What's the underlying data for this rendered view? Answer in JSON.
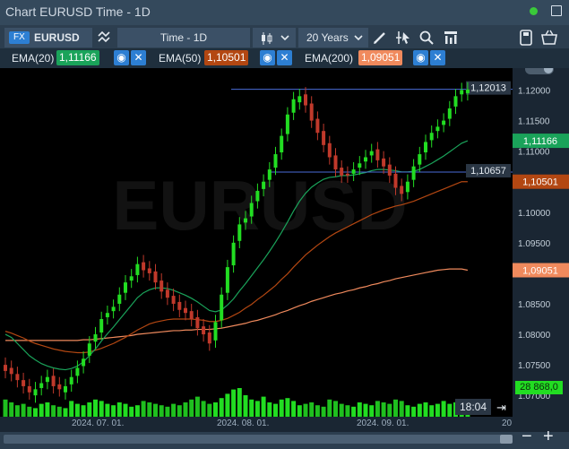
{
  "window": {
    "title": "Chart EURUSD Time - 1D"
  },
  "toolbar": {
    "symbol_badge": "FX",
    "symbol": "EURUSD",
    "timeframe": "Time - 1D",
    "range": "20 Years"
  },
  "indicators": [
    {
      "label": "EMA(20)",
      "value": "1,11166",
      "color": "#1aa35a"
    },
    {
      "label": "EMA(50)",
      "value": "1,10501",
      "color": "#b34712"
    },
    {
      "label": "EMA(200)",
      "value": "1,09051",
      "color": "#f08a5d"
    }
  ],
  "watermark": "EURUSD",
  "price_lines": [
    {
      "label": "1,12013",
      "price": 1.12013
    },
    {
      "label": "1,10657",
      "price": 1.10657
    }
  ],
  "axis": {
    "y_ticks": [
      "1.12000",
      "1.11500",
      "1.11000",
      "1.10500",
      "1.10000",
      "1.09500",
      "1.09000",
      "1.08500",
      "1.08000",
      "1.07500",
      "1.07000"
    ],
    "y_tick_values": [
      1.12,
      1.115,
      1.11,
      1.105,
      1.1,
      1.095,
      1.09,
      1.085,
      1.08,
      1.075,
      1.07
    ],
    "x_ticks": [
      "2024. 07. 01.",
      "2024. 08. 01.",
      "2024. 09. 01."
    ],
    "x_tail": "20",
    "time_readout": "18:04",
    "volume_label": "28 868,0"
  },
  "colors": {
    "up": "#22dd22",
    "down": "#c0392b",
    "ema20": "#1aa35a",
    "ema50": "#b34712",
    "ema200": "#f08a5d",
    "price_line": "#4a6bd8"
  },
  "chart_data": {
    "type": "candlestick",
    "ylim": [
      1.0665,
      1.1236
    ],
    "x_categories": [
      "2024-06-10",
      "2024-06-11",
      "2024-06-12",
      "2024-06-13",
      "2024-06-14",
      "2024-06-17",
      "2024-06-18",
      "2024-06-19",
      "2024-06-20",
      "2024-06-21",
      "2024-06-24",
      "2024-06-25",
      "2024-06-26",
      "2024-06-27",
      "2024-06-28",
      "2024-07-01",
      "2024-07-02",
      "2024-07-03",
      "2024-07-04",
      "2024-07-05",
      "2024-07-08",
      "2024-07-09",
      "2024-07-10",
      "2024-07-11",
      "2024-07-12",
      "2024-07-15",
      "2024-07-16",
      "2024-07-17",
      "2024-07-18",
      "2024-07-19",
      "2024-07-22",
      "2024-07-23",
      "2024-07-24",
      "2024-07-25",
      "2024-07-26",
      "2024-07-29",
      "2024-07-30",
      "2024-07-31",
      "2024-08-01",
      "2024-08-02",
      "2024-08-05",
      "2024-08-06",
      "2024-08-07",
      "2024-08-08",
      "2024-08-09",
      "2024-08-12",
      "2024-08-13",
      "2024-08-14",
      "2024-08-15",
      "2024-08-16",
      "2024-08-19",
      "2024-08-20",
      "2024-08-21",
      "2024-08-22",
      "2024-08-23",
      "2024-08-26",
      "2024-08-27",
      "2024-08-28",
      "2024-08-29",
      "2024-08-30",
      "2024-09-02",
      "2024-09-03",
      "2024-09-04",
      "2024-09-05",
      "2024-09-06",
      "2024-09-09",
      "2024-09-10",
      "2024-09-11",
      "2024-09-12",
      "2024-09-13",
      "2024-09-16",
      "2024-09-17",
      "2024-09-18",
      "2024-09-19",
      "2024-09-20",
      "2024-09-23",
      "2024-09-24",
      "2024-09-25"
    ],
    "close": [
      1.074,
      1.0735,
      1.0725,
      1.0715,
      1.0705,
      1.071,
      1.072,
      1.073,
      1.0715,
      1.071,
      1.0715,
      1.073,
      1.0745,
      1.076,
      1.0785,
      1.08,
      1.0825,
      1.0835,
      1.0845,
      1.0865,
      1.0885,
      1.0895,
      1.0915,
      1.0905,
      1.09,
      1.0885,
      1.087,
      1.086,
      1.085,
      1.084,
      1.0835,
      1.0825,
      1.081,
      1.08,
      1.0785,
      1.082,
      1.0865,
      1.091,
      1.095,
      1.098,
      1.099,
      1.1015,
      1.1035,
      1.105,
      1.107,
      1.1095,
      1.1125,
      1.116,
      1.1185,
      1.119,
      1.1175,
      1.115,
      1.113,
      1.111,
      1.109,
      1.107,
      1.106,
      1.106,
      1.107,
      1.108,
      1.109,
      1.11,
      1.1085,
      1.1075,
      1.106,
      1.104,
      1.103,
      1.105,
      1.1075,
      1.1095,
      1.1115,
      1.113,
      1.114,
      1.115,
      1.117,
      1.119,
      1.12,
      1.1201
    ],
    "open": [
      1.075,
      1.0745,
      1.0735,
      1.0725,
      1.0715,
      1.07,
      1.0712,
      1.0722,
      1.0732,
      1.0718,
      1.0705,
      1.0718,
      1.0732,
      1.0748,
      1.0765,
      1.0788,
      1.0803,
      1.0828,
      1.0838,
      1.085,
      1.0868,
      1.0888,
      1.0897,
      1.0918,
      1.0908,
      1.0903,
      1.0888,
      1.0873,
      1.0863,
      1.0853,
      1.0843,
      1.0838,
      1.0828,
      1.0813,
      1.0803,
      1.079,
      1.0823,
      1.0868,
      1.0913,
      1.0953,
      1.0983,
      1.0993,
      1.1018,
      1.1038,
      1.1053,
      1.1073,
      1.1098,
      1.1128,
      1.1163,
      1.118,
      1.1193,
      1.1178,
      1.1153,
      1.1133,
      1.1113,
      1.1093,
      1.1073,
      1.1063,
      1.1063,
      1.1073,
      1.1083,
      1.1093,
      1.1103,
      1.1088,
      1.1078,
      1.1063,
      1.1043,
      1.1033,
      1.1053,
      1.1078,
      1.1098,
      1.1118,
      1.1133,
      1.1143,
      1.1153,
      1.1173,
      1.1193,
      1.1195
    ],
    "ema20": [
      1.08,
      1.0795,
      1.0785,
      1.0775,
      1.0765,
      1.0758,
      1.0752,
      1.0748,
      1.0745,
      1.0743,
      1.0742,
      1.0744,
      1.0748,
      1.0755,
      1.0765,
      1.0776,
      1.0789,
      1.0801,
      1.0812,
      1.0824,
      1.0836,
      1.0848,
      1.086,
      1.0868,
      1.0873,
      1.0876,
      1.0876,
      1.0875,
      1.0872,
      1.0868,
      1.0864,
      1.0859,
      1.0853,
      1.0846,
      1.0839,
      1.0837,
      1.084,
      1.0848,
      1.0858,
      1.0871,
      1.0883,
      1.0896,
      1.0909,
      1.0922,
      1.0936,
      1.0951,
      1.0967,
      1.0984,
      1.1002,
      1.1018,
      1.1031,
      1.1041,
      1.1048,
      1.1054,
      1.1057,
      1.1058,
      1.106,
      1.106,
      1.1061,
      1.1063,
      1.1065,
      1.1068,
      1.107,
      1.107,
      1.1069,
      1.1068,
      1.1066,
      1.1066,
      1.1067,
      1.107,
      1.1075,
      1.108,
      1.1086,
      1.1092,
      1.1099,
      1.1106,
      1.1113,
      1.1117
    ],
    "ema50": [
      1.0805,
      1.0802,
      1.0798,
      1.0794,
      1.0789,
      1.0785,
      1.0782,
      1.0779,
      1.0776,
      1.0774,
      1.0772,
      1.0771,
      1.077,
      1.077,
      1.0771,
      1.0774,
      1.0777,
      1.0781,
      1.0785,
      1.079,
      1.0795,
      1.0801,
      1.0807,
      1.0812,
      1.0817,
      1.082,
      1.0822,
      1.0824,
      1.0825,
      1.0825,
      1.0825,
      1.0825,
      1.0824,
      1.0823,
      1.0821,
      1.0821,
      1.0823,
      1.0826,
      1.0831,
      1.0836,
      1.0843,
      1.0849,
      1.0857,
      1.0864,
      1.0872,
      1.088,
      1.089,
      1.0899,
      1.091,
      1.092,
      1.093,
      1.0938,
      1.0946,
      1.0953,
      1.096,
      1.0966,
      1.0971,
      1.0976,
      1.0981,
      1.0986,
      1.0991,
      1.0996,
      1.1,
      1.1004,
      1.1007,
      1.101,
      1.1012,
      1.1015,
      1.1018,
      1.1022,
      1.1026,
      1.103,
      1.1034,
      1.1038,
      1.1042,
      1.1046,
      1.105,
      1.105
    ],
    "ema200": [
      1.079,
      1.079,
      1.079,
      1.079,
      1.079,
      1.079,
      1.079,
      1.079,
      1.079,
      1.079,
      1.079,
      1.079,
      1.079,
      1.0791,
      1.0791,
      1.0792,
      1.0793,
      1.0794,
      1.0795,
      1.0796,
      1.0797,
      1.0798,
      1.08,
      1.0801,
      1.0802,
      1.0803,
      1.0804,
      1.0805,
      1.0806,
      1.0806,
      1.0807,
      1.0807,
      1.0808,
      1.0808,
      1.0808,
      1.0809,
      1.081,
      1.0812,
      1.0814,
      1.0816,
      1.0818,
      1.0821,
      1.0823,
      1.0826,
      1.0829,
      1.0832,
      1.0836,
      1.0839,
      1.0843,
      1.0847,
      1.085,
      1.0854,
      1.0857,
      1.086,
      1.0863,
      1.0866,
      1.0868,
      1.0871,
      1.0873,
      1.0876,
      1.0878,
      1.0881,
      1.0883,
      1.0886,
      1.0888,
      1.0891,
      1.0893,
      1.0895,
      1.0897,
      1.0899,
      1.0901,
      1.0903,
      1.0905,
      1.0906,
      1.0907,
      1.0907,
      1.0907,
      1.0905
    ],
    "volume": [
      0.6,
      0.5,
      0.4,
      0.45,
      0.35,
      0.3,
      0.45,
      0.5,
      0.4,
      0.35,
      0.3,
      0.55,
      0.45,
      0.4,
      0.5,
      0.6,
      0.55,
      0.45,
      0.4,
      0.5,
      0.45,
      0.35,
      0.4,
      0.55,
      0.5,
      0.45,
      0.4,
      0.35,
      0.45,
      0.4,
      0.5,
      0.6,
      0.7,
      0.55,
      0.45,
      0.5,
      0.65,
      0.8,
      0.95,
      1.0,
      0.75,
      0.6,
      0.55,
      0.7,
      0.5,
      0.45,
      0.6,
      0.65,
      0.55,
      0.4,
      0.45,
      0.5,
      0.4,
      0.35,
      0.6,
      0.55,
      0.45,
      0.4,
      0.35,
      0.5,
      0.45,
      0.4,
      0.55,
      0.5,
      0.45,
      0.6,
      0.55,
      0.4,
      0.35,
      0.45,
      0.5,
      0.4,
      0.45,
      0.55,
      0.45,
      0.5,
      0.4,
      0.35
    ]
  }
}
